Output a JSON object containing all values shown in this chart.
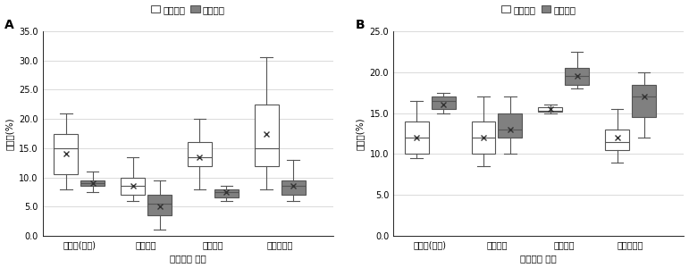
{
  "panel_A": {
    "label": "A",
    "ylim": [
      0,
      35
    ],
    "yticks": [
      0.0,
      5.0,
      10.0,
      15.0,
      20.0,
      25.0,
      30.0,
      35.0
    ],
    "ylabel": "발생률(%)",
    "xlabel": "비닐멀칭 처리",
    "categories": [
      "무멀칭(대조)",
      "투명비닐",
      "흐색비닐",
      "투습방수지"
    ],
    "early": [
      {
        "whislo": 8.0,
        "q1": 10.5,
        "med": 15.0,
        "q3": 17.5,
        "whishi": 21.0,
        "mean": 14.0
      },
      {
        "whislo": 6.0,
        "q1": 7.0,
        "med": 8.5,
        "q3": 10.0,
        "whishi": 13.5,
        "mean": 8.5
      },
      {
        "whislo": 8.0,
        "q1": 12.0,
        "med": 13.5,
        "q3": 16.0,
        "whishi": 20.0,
        "mean": 13.5
      },
      {
        "whislo": 8.0,
        "q1": 12.0,
        "med": 15.0,
        "q3": 22.5,
        "whishi": 30.5,
        "mean": 17.5
      }
    ],
    "late": [
      {
        "whislo": 7.5,
        "q1": 8.5,
        "med": 9.0,
        "q3": 9.5,
        "whishi": 11.0,
        "mean": 9.0
      },
      {
        "whislo": 1.0,
        "q1": 3.5,
        "med": 5.5,
        "q3": 7.0,
        "whishi": 9.5,
        "mean": 5.0
      },
      {
        "whislo": 6.0,
        "q1": 6.5,
        "med": 7.5,
        "q3": 8.0,
        "whishi": 8.5,
        "mean": 7.5
      },
      {
        "whislo": 6.0,
        "q1": 7.0,
        "med": 8.5,
        "q3": 9.5,
        "whishi": 13.0,
        "mean": 8.5
      }
    ]
  },
  "panel_B": {
    "label": "B",
    "ylim": [
      0,
      25
    ],
    "yticks": [
      0.0,
      5.0,
      10.0,
      15.0,
      20.0,
      25.0
    ],
    "ylabel": "발생률(%)",
    "xlabel": "비닐멀칭 처리",
    "categories": [
      "무멀칭(대조)",
      "투명비닐",
      "흐색비닐",
      "투습방수지"
    ],
    "early": [
      {
        "whislo": 9.5,
        "q1": 10.0,
        "med": 12.0,
        "q3": 14.0,
        "whishi": 16.5,
        "mean": 12.0
      },
      {
        "whislo": 8.5,
        "q1": 10.0,
        "med": 12.0,
        "q3": 14.0,
        "whishi": 17.0,
        "mean": 12.0
      },
      {
        "whislo": 15.0,
        "q1": 15.2,
        "med": 15.3,
        "q3": 15.7,
        "whishi": 16.0,
        "mean": 15.5
      },
      {
        "whislo": 9.0,
        "q1": 10.5,
        "med": 11.5,
        "q3": 13.0,
        "whishi": 15.5,
        "mean": 12.0
      }
    ],
    "late": [
      {
        "whislo": 15.0,
        "q1": 15.5,
        "med": 16.5,
        "q3": 17.0,
        "whishi": 17.5,
        "mean": 16.0
      },
      {
        "whislo": 10.0,
        "q1": 12.0,
        "med": 13.0,
        "q3": 15.0,
        "whishi": 17.0,
        "mean": 13.0
      },
      {
        "whislo": 18.0,
        "q1": 18.5,
        "med": 19.5,
        "q3": 20.5,
        "whishi": 22.5,
        "mean": 19.5
      },
      {
        "whislo": 12.0,
        "q1": 14.5,
        "med": 17.0,
        "q3": 18.5,
        "whishi": 20.0,
        "mean": 17.0
      }
    ]
  },
  "legend_labels": [
    "조기수확",
    "만기수확"
  ],
  "early_color": "#ffffff",
  "late_color": "#808080",
  "box_edge_color": "#555555",
  "mean_marker": "x",
  "mean_color": "#333333",
  "label_fontsize": 7.5,
  "tick_fontsize": 7.0,
  "panel_label_fontsize": 10
}
